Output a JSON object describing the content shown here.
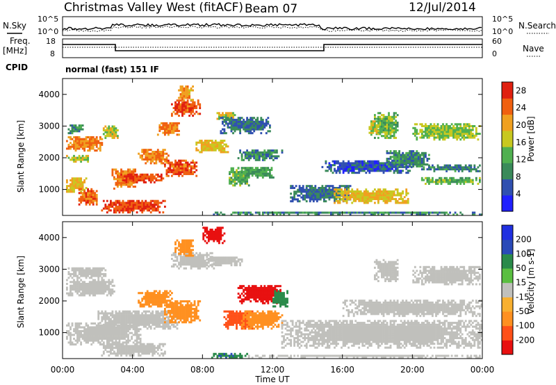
{
  "header": {
    "station": "Christmas Valley West (fitACF)",
    "beam": "Beam 07",
    "date": "12/Jul/2014"
  },
  "noise_panel": {
    "left_label": "N.Sky",
    "right_label": "N.Search",
    "y_top_left": "10^5",
    "y_bot_left": "10^0",
    "y_top_right": "10^5",
    "y_bot_right": "10^0"
  },
  "freq_panel": {
    "left_label_1": "Freq.",
    "left_label_2": "[MHz]",
    "right_label": "Nave",
    "y_top_left": "18",
    "y_bot_left": "8",
    "y_top_right": "60",
    "y_bot_right": "0"
  },
  "cpid": {
    "label": "CPID",
    "value": "normal (fast) 151 IF"
  },
  "colors": {
    "velocity_gray": "#c0c0bc",
    "power_scale": [
      "#2020ff",
      "#3050b0",
      "#3a8a5a",
      "#50b050",
      "#c8c820",
      "#f0a020",
      "#f06010",
      "#e02010"
    ],
    "velocity_scale": [
      "#e81010",
      "#ff5018",
      "#ff9020",
      "#f8b030",
      "#c0c0bc",
      "#5abe40",
      "#2a8a4a",
      "#2a4ab8",
      "#2030e0"
    ]
  },
  "chart_data": [
    {
      "type": "heatmap",
      "title": "",
      "xlabel": "",
      "ylabel": "Slant Range [km]",
      "x_ticks": [
        "00:00",
        "04:00",
        "08:00",
        "12:00",
        "16:00",
        "20:00",
        "00:00"
      ],
      "x_range_hours": [
        0,
        24
      ],
      "y_ticks": [
        1000,
        2000,
        3000,
        4000
      ],
      "ylim": [
        180,
        4500
      ],
      "colorbar": {
        "label": "Power [dB]",
        "ticks": [
          4,
          8,
          12,
          16,
          20,
          24,
          28
        ],
        "range": [
          0,
          30
        ]
      },
      "regions": [
        {
          "t0": 0.2,
          "t1": 2.3,
          "r0": 2200,
          "r1": 2650,
          "value": 24
        },
        {
          "t0": 0.2,
          "t1": 1.5,
          "r0": 1850,
          "r1": 2050,
          "value": 18
        },
        {
          "t0": 0.3,
          "t1": 1.2,
          "r0": 2750,
          "r1": 3050,
          "value": 10
        },
        {
          "t0": 0.2,
          "t1": 1.4,
          "r0": 900,
          "r1": 1350,
          "value": 20
        },
        {
          "t0": 0.8,
          "t1": 2.0,
          "r0": 500,
          "r1": 1000,
          "value": 26
        },
        {
          "t0": 2.3,
          "t1": 3.2,
          "r0": 2600,
          "r1": 3000,
          "value": 18
        },
        {
          "t0": 2.8,
          "t1": 4.2,
          "r0": 1000,
          "r1": 1650,
          "value": 24
        },
        {
          "t0": 3.2,
          "t1": 5.8,
          "r0": 1200,
          "r1": 1500,
          "value": 28
        },
        {
          "t0": 2.2,
          "t1": 5.8,
          "r0": 250,
          "r1": 650,
          "value": 28
        },
        {
          "t0": 4.3,
          "t1": 6.0,
          "r0": 1800,
          "r1": 2250,
          "value": 24
        },
        {
          "t0": 5.8,
          "t1": 7.6,
          "r0": 1400,
          "r1": 1900,
          "value": 27
        },
        {
          "t0": 6.2,
          "t1": 7.8,
          "r0": 3300,
          "r1": 3800,
          "value": 27
        },
        {
          "t0": 6.6,
          "t1": 7.4,
          "r0": 3800,
          "r1": 4250,
          "value": 22
        },
        {
          "t0": 5.4,
          "t1": 6.6,
          "r0": 2700,
          "r1": 3100,
          "value": 24
        },
        {
          "t0": 7.6,
          "t1": 9.4,
          "r0": 2150,
          "r1": 2550,
          "value": 20
        },
        {
          "t0": 8.8,
          "t1": 9.8,
          "r0": 3200,
          "r1": 3400,
          "value": 18
        },
        {
          "t0": 9.5,
          "t1": 10.6,
          "r0": 1100,
          "r1": 1700,
          "value": 14
        },
        {
          "t0": 10.0,
          "t1": 12.5,
          "r0": 1900,
          "r1": 2250,
          "value": 10
        },
        {
          "t0": 10.0,
          "t1": 12.0,
          "r0": 1350,
          "r1": 1700,
          "value": 12
        },
        {
          "t0": 9.0,
          "t1": 11.8,
          "r0": 2750,
          "r1": 3250,
          "value": 8
        },
        {
          "t0": 13.0,
          "t1": 16.5,
          "r0": 600,
          "r1": 1100,
          "value": 8
        },
        {
          "t0": 14.8,
          "t1": 20.0,
          "r0": 1500,
          "r1": 1900,
          "value": 6
        },
        {
          "t0": 15.5,
          "t1": 19.8,
          "r0": 550,
          "r1": 1000,
          "value": 20
        },
        {
          "t0": 18.5,
          "t1": 21.0,
          "r0": 1700,
          "r1": 2200,
          "value": 10
        },
        {
          "t0": 20.5,
          "t1": 23.9,
          "r0": 1150,
          "r1": 1350,
          "value": 14
        },
        {
          "t0": 20.5,
          "t1": 23.9,
          "r0": 1550,
          "r1": 1750,
          "value": 10
        },
        {
          "t0": 20.0,
          "t1": 23.9,
          "r0": 2550,
          "r1": 3050,
          "value": 16
        },
        {
          "t0": 17.8,
          "t1": 19.2,
          "r0": 2600,
          "r1": 3400,
          "value": 14
        },
        {
          "t0": 17.5,
          "t1": 18.1,
          "r0": 2700,
          "r1": 3150,
          "value": 18
        },
        {
          "t0": 8.2,
          "t1": 24.0,
          "r0": 180,
          "r1": 300,
          "value": 10
        }
      ]
    },
    {
      "type": "heatmap",
      "title": "",
      "xlabel": "Time UT",
      "ylabel": "Slant Range [km]",
      "x_ticks": [
        "00:00",
        "04:00",
        "08:00",
        "12:00",
        "16:00",
        "20:00",
        "00:00"
      ],
      "x_range_hours": [
        0,
        24
      ],
      "y_ticks": [
        1000,
        2000,
        3000,
        4000
      ],
      "ylim": [
        180,
        4500
      ],
      "colorbar": {
        "label": "Velocity [m s-1]",
        "ticks": [
          200,
          100,
          50,
          15,
          -15,
          -50,
          -100,
          -200
        ],
        "range": [
          -250,
          250
        ]
      },
      "regions": [
        {
          "t0": 0.2,
          "t1": 3.0,
          "r0": 2150,
          "r1": 2650,
          "value": 0
        },
        {
          "t0": 0.3,
          "t1": 2.5,
          "r0": 2700,
          "r1": 3050,
          "value": 0
        },
        {
          "t0": 0.2,
          "t1": 4.5,
          "r0": 600,
          "r1": 1300,
          "value": 0
        },
        {
          "t0": 2.0,
          "t1": 6.5,
          "r0": 1100,
          "r1": 1700,
          "value": 0
        },
        {
          "t0": 2.2,
          "t1": 5.8,
          "r0": 250,
          "r1": 650,
          "value": 0
        },
        {
          "t0": 4.3,
          "t1": 6.2,
          "r0": 1800,
          "r1": 2300,
          "value": -60
        },
        {
          "t0": 6.2,
          "t1": 8.6,
          "r0": 3000,
          "r1": 3500,
          "value": 0
        },
        {
          "t0": 5.8,
          "t1": 7.8,
          "r0": 1300,
          "r1": 2000,
          "value": -60
        },
        {
          "t0": 6.4,
          "t1": 7.4,
          "r0": 3400,
          "r1": 3900,
          "value": -60
        },
        {
          "t0": 8.0,
          "t1": 9.2,
          "r0": 3800,
          "r1": 4300,
          "value": -220
        },
        {
          "t0": 9.2,
          "t1": 10.8,
          "r0": 1100,
          "r1": 1700,
          "value": -130
        },
        {
          "t0": 10.2,
          "t1": 12.5,
          "r0": 1100,
          "r1": 1700,
          "value": -60
        },
        {
          "t0": 10.0,
          "t1": 12.4,
          "r0": 1900,
          "r1": 2500,
          "value": -220
        },
        {
          "t0": 12.0,
          "t1": 12.8,
          "r0": 1800,
          "r1": 2300,
          "value": 60
        },
        {
          "t0": 8.2,
          "t1": 10.2,
          "r0": 3100,
          "r1": 3400,
          "value": 0
        },
        {
          "t0": 12.5,
          "t1": 24.0,
          "r0": 500,
          "r1": 1400,
          "value": 0
        },
        {
          "t0": 16.0,
          "t1": 24.0,
          "r0": 1500,
          "r1": 2000,
          "value": 0
        },
        {
          "t0": 17.8,
          "t1": 19.2,
          "r0": 2600,
          "r1": 3300,
          "value": 0
        },
        {
          "t0": 20.0,
          "t1": 23.9,
          "r0": 2500,
          "r1": 3100,
          "value": 0
        },
        {
          "t0": 8.4,
          "t1": 10.5,
          "r0": 180,
          "r1": 320,
          "value": 70
        },
        {
          "t0": 10.5,
          "t1": 24.0,
          "r0": 180,
          "r1": 300,
          "value": 0
        }
      ]
    }
  ],
  "time_axis_label": "Time UT"
}
